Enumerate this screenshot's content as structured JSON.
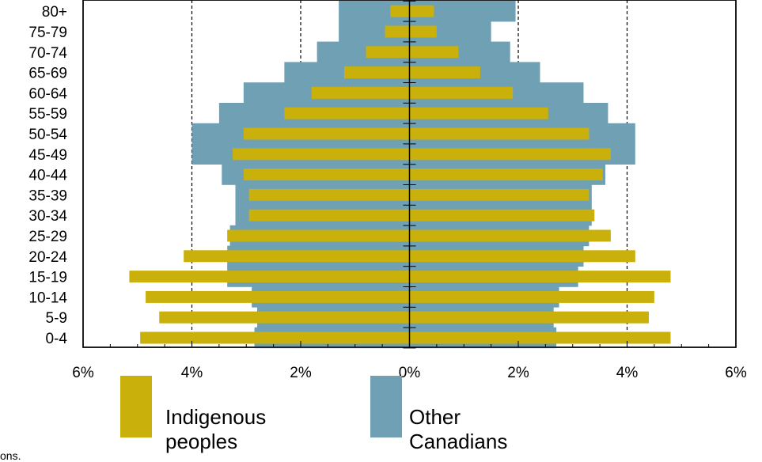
{
  "chart_data": {
    "type": "bar",
    "orientation": "horizontal",
    "categories": [
      "0-4",
      "5-9",
      "10-14",
      "15-19",
      "20-24",
      "25-29",
      "30-34",
      "35-39",
      "40-44",
      "45-49",
      "50-54",
      "55-59",
      "60-64",
      "65-69",
      "70-74",
      "75-79",
      "80+"
    ],
    "series": [
      {
        "name": "Indigenous peoples",
        "color": "#c9b00a",
        "female": [
          4.8,
          4.4,
          4.5,
          4.8,
          4.15,
          3.7,
          3.4,
          3.3,
          3.55,
          3.7,
          3.3,
          2.55,
          1.9,
          1.3,
          0.9,
          0.5,
          0.45
        ],
        "male": [
          4.95,
          4.6,
          4.85,
          5.15,
          4.15,
          3.35,
          2.95,
          2.95,
          3.05,
          3.25,
          3.05,
          2.3,
          1.8,
          1.2,
          0.8,
          0.45,
          0.35
        ]
      },
      {
        "name": "Other Canadians",
        "color": "#6fa0b4",
        "female": [
          2.7,
          2.65,
          2.75,
          3.1,
          3.2,
          3.3,
          3.35,
          3.35,
          3.6,
          4.15,
          4.15,
          3.65,
          3.2,
          2.4,
          1.85,
          1.5,
          1.95
        ],
        "male": [
          2.85,
          2.8,
          2.9,
          3.35,
          3.35,
          3.3,
          3.2,
          3.2,
          3.45,
          4.0,
          4.0,
          3.5,
          3.05,
          2.3,
          1.7,
          1.3,
          1.3
        ]
      }
    ],
    "x_ticks": [
      "6%",
      "4%",
      "2%",
      "0%",
      "2%",
      "4%",
      "6%"
    ],
    "xlim": [
      -6,
      6
    ],
    "grid": "dashed vertical lines at ±2% and ±4%",
    "legend": [
      "Indigenous peoples",
      "Other Canadians"
    ],
    "legend_placement": "bottom"
  },
  "legend": {
    "indigenous_line1": "Indigenous",
    "indigenous_line2": "peoples",
    "other_line1": "Other",
    "other_line2": "Canadians"
  },
  "footnote": "ons."
}
